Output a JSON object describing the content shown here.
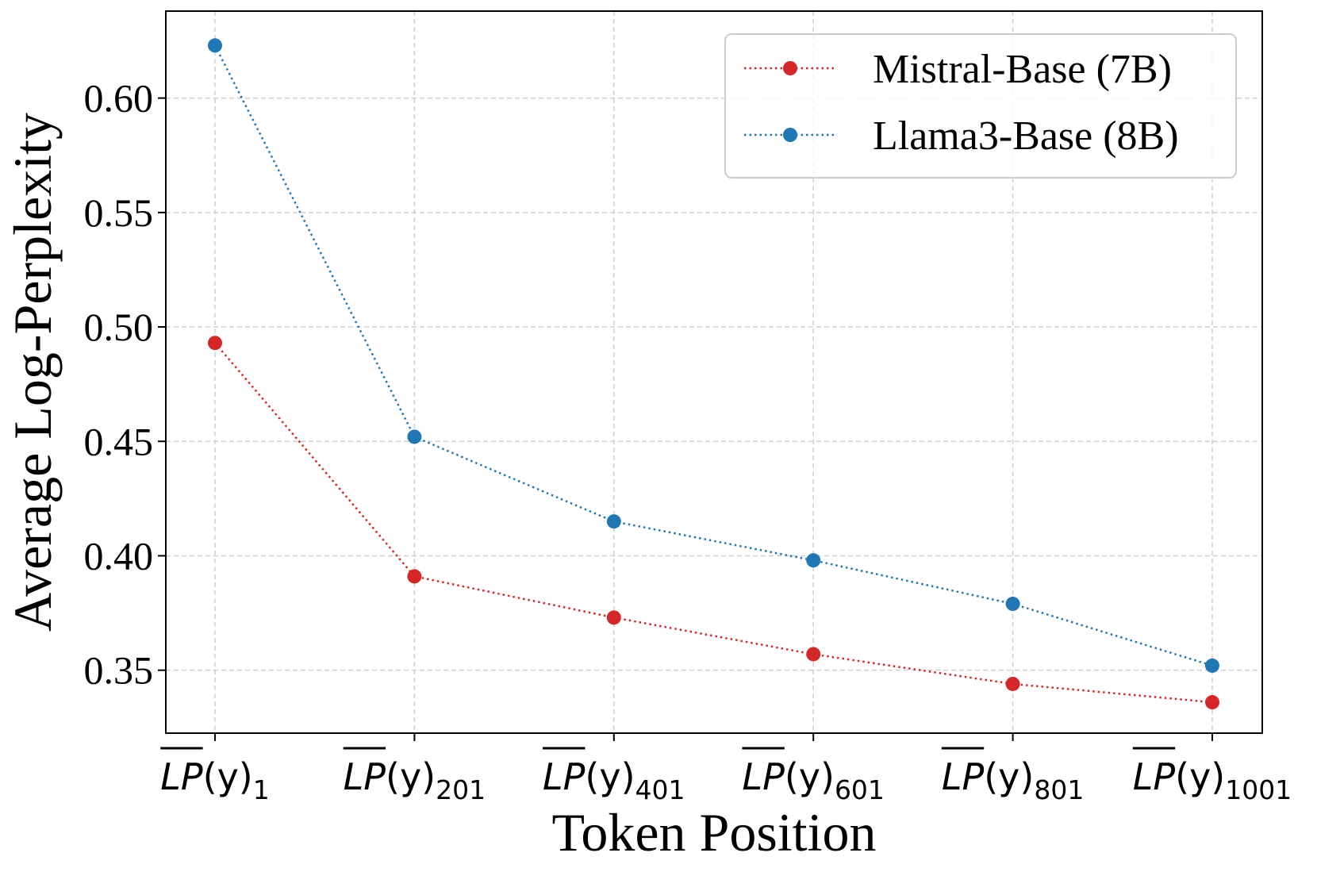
{
  "chart_data": {
    "type": "line",
    "title": "",
    "xlabel": "Token Position",
    "ylabel": "Average Log-Perplexity",
    "ylim": [
      0.3225,
      0.638
    ],
    "yticks": [
      0.35,
      0.4,
      0.45,
      0.5,
      0.55,
      0.6
    ],
    "ytick_labels": [
      "0.35",
      "0.40",
      "0.45",
      "0.50",
      "0.55",
      "0.60"
    ],
    "grid": true,
    "legend_position": "top-right",
    "categories": [
      {
        "main": "LP",
        "paren": "(y)",
        "sub": "1"
      },
      {
        "main": "LP",
        "paren": "(y)",
        "sub": "201"
      },
      {
        "main": "LP",
        "paren": "(y)",
        "sub": "401"
      },
      {
        "main": "LP",
        "paren": "(y)",
        "sub": "601"
      },
      {
        "main": "LP",
        "paren": "(y)",
        "sub": "801"
      },
      {
        "main": "LP",
        "paren": "(y)",
        "sub": "1001"
      }
    ],
    "series": [
      {
        "name": "Mistral-Base (7B)",
        "color": "#d62728",
        "values": [
          0.493,
          0.391,
          0.373,
          0.357,
          0.344,
          0.336
        ]
      },
      {
        "name": "Llama3-Base (8B)",
        "color": "#1f77b4",
        "values": [
          0.623,
          0.452,
          0.415,
          0.398,
          0.379,
          0.352
        ]
      }
    ]
  }
}
